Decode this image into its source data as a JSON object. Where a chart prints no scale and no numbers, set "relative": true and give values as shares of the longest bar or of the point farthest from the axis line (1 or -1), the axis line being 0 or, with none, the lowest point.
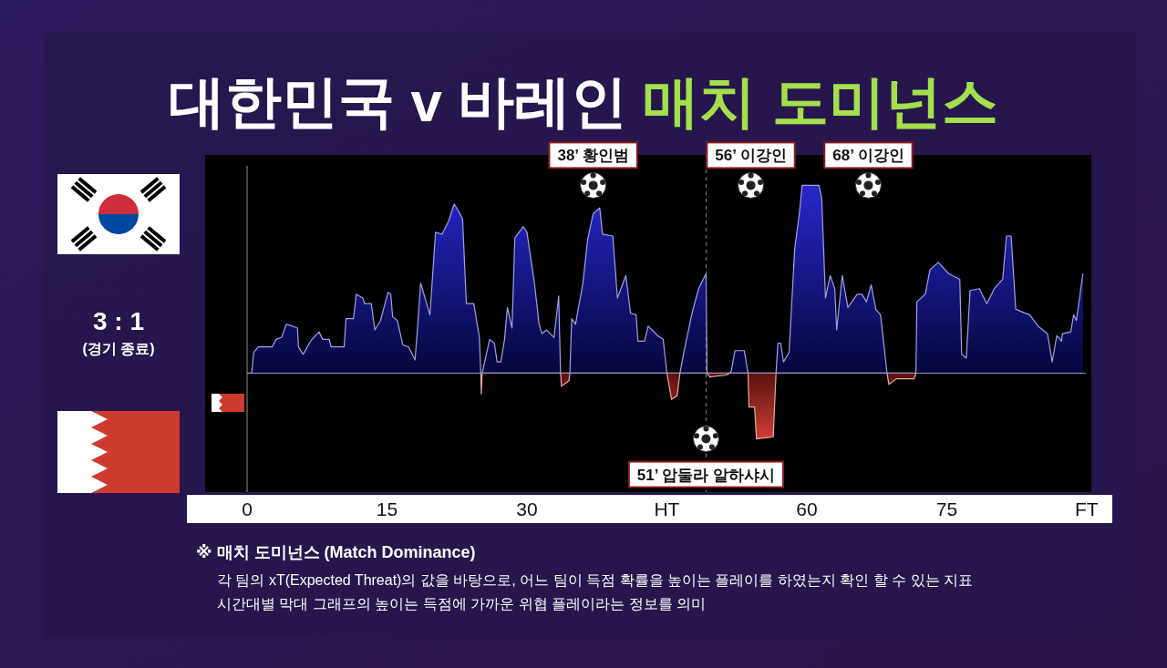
{
  "chart_data": {
    "type": "area",
    "title": "대한민국 v 바레인 매치 도미넌스",
    "relative": true,
    "xlim": [
      -4.5,
      90.5
    ],
    "xticks": [
      0,
      15,
      30,
      {
        "value": 45,
        "label": "HT"
      },
      60,
      75,
      {
        "value": 90,
        "label": "FT"
      }
    ],
    "tick_labels": "x",
    "series": [
      {
        "color": "#1414c8",
        "x": [
          0,
          0.5,
          0.7,
          1.2,
          2.7,
          3.1,
          3.7,
          4.2,
          4.9,
          5.4,
          5.5,
          6.0,
          6.8,
          7.7,
          8.1,
          8.8,
          9.0,
          10.4,
          10.6,
          11.4,
          11.7,
          12.4,
          12.6,
          13.3,
          13.7,
          14.3,
          15.1,
          15.4,
          15.6,
          16.1,
          16.7,
          17.3,
          18.0,
          18.3,
          18.6,
          19.6,
          20.2,
          20.9,
          21.6,
          22.2,
          22.7,
          23.1,
          23.5,
          24.3,
          24.9,
          25.05,
          25.2,
          26.0,
          26.5,
          26.8,
          27.2,
          27.6,
          27.9,
          28.4,
          28.7,
          29.6,
          30.0,
          30.8,
          31.3,
          31.6,
          32.1,
          32.9,
          33.4,
          33.6,
          34.6,
          34.8,
          35.2,
          36.0,
          36.5,
          37.1,
          37.8,
          38.1,
          39.2,
          39.7,
          40.6,
          41.1,
          41.7,
          41.9,
          42.6,
          43.0,
          44.0,
          44.6,
          45.0,
          46.4,
          46.9,
          47.7,
          48.4,
          49.2,
          49.3,
          51.7,
          51.9,
          52.3,
          53.3,
          53.7,
          56.7,
          56.9,
          57.2,
          57.5,
          58.1,
          58.7,
          59.2,
          59.5,
          61.3,
          61.6,
          62.0,
          62.5,
          63.0,
          63.2,
          63.8,
          64.4,
          65.4,
          65.9,
          66.4,
          66.9,
          67.4,
          67.9,
          68.6,
          71.7,
          71.8,
          72.7,
          73.2,
          74.1,
          75.2,
          76.4,
          76.6,
          77.1,
          77.5,
          78.5,
          79.3,
          80.1,
          81.0,
          81.4,
          81.9,
          82.4,
          83.9,
          84.8,
          85.8,
          86.3,
          86.8,
          87.3,
          87.4,
          88.3,
          88.6,
          88.9,
          89.6
        ],
        "values": [
          0,
          0,
          0.11,
          0.14,
          0.14,
          0.18,
          0.19,
          0.26,
          0.25,
          0.24,
          0.14,
          0.1,
          0.17,
          0.22,
          0.18,
          0.18,
          0.14,
          0.14,
          0.29,
          0.29,
          0.42,
          0.4,
          0.37,
          0.37,
          0.23,
          0.28,
          0.43,
          0.42,
          0.3,
          0.28,
          0.15,
          0.14,
          0.07,
          0.26,
          0.48,
          0.31,
          0.75,
          0.74,
          0.81,
          0.9,
          0.86,
          0.82,
          0.37,
          0.37,
          0.19,
          0,
          0,
          0.18,
          0.16,
          0.06,
          0.06,
          0.18,
          0.35,
          0.24,
          0.72,
          0.78,
          0.75,
          0.48,
          0.26,
          0.21,
          0.23,
          0.19,
          0.41,
          0,
          0,
          0.29,
          0.26,
          0.48,
          0.71,
          0.85,
          0.88,
          0.74,
          0.73,
          0.4,
          0.52,
          0.32,
          0.31,
          0.17,
          0.17,
          0.25,
          0.2,
          0.18,
          0,
          0,
          0.13,
          0.32,
          0.45,
          0.53,
          0,
          0,
          0.01,
          0.12,
          0.12,
          0,
          0,
          0.16,
          0.16,
          0.06,
          0.11,
          0.66,
          0.85,
          1,
          1,
          0.93,
          0.4,
          0.52,
          0.45,
          0.23,
          0.52,
          0.35,
          0.42,
          0.42,
          0.38,
          0.47,
          0.34,
          0.31,
          0,
          0,
          0.38,
          0.42,
          0.55,
          0.59,
          0.53,
          0.5,
          0.1,
          0.08,
          0.44,
          0.45,
          0.37,
          0.45,
          0.5,
          0.73,
          0.73,
          0.34,
          0.31,
          0.25,
          0.21,
          0.06,
          0.2,
          0.17,
          0.21,
          0.22,
          0.31,
          0.28,
          0.53
        ]
      },
      {
        "color": "#c8281e",
        "x": [
          25.05,
          25.1,
          25.2,
          33.6,
          33.7,
          34.5,
          34.6,
          45.0,
          45.5,
          46.1,
          46.4,
          49.3,
          49.6,
          51.4,
          51.7,
          53.7,
          53.8,
          54.4,
          54.6,
          56.4,
          56.7,
          68.6,
          68.8,
          69.6,
          71.5,
          71.7
        ],
        "values": [
          0,
          -0.11,
          0,
          0,
          -0.07,
          -0.04,
          0,
          0,
          -0.14,
          -0.12,
          0,
          0,
          -0.02,
          -0.01,
          0,
          0,
          -0.18,
          -0.18,
          -0.35,
          -0.34,
          0,
          0,
          -0.06,
          -0.03,
          -0.03,
          0
        ]
      }
    ],
    "ref_lines": [
      {
        "axis": "x",
        "value": 49.2,
        "color": "#8a8a8a",
        "line_style": "dashed"
      },
      {
        "axis": "y",
        "value": 0,
        "color": "#9a8fd0"
      }
    ],
    "annotations": [
      {
        "text": "38’ 황인범",
        "x": 37.1,
        "y": 1.0
      },
      {
        "text": "56’ 이강인",
        "x": 54.0,
        "y": 1.0
      },
      {
        "text": "68’ 이강인",
        "x": 66.6,
        "y": 1.0
      },
      {
        "text": "51’ 압둘라 알하샤시",
        "x": 49.2,
        "y": -0.35
      },
      "3 : 1",
      "(경기 종료)",
      "※ 매치 도미넌스 (Match Dominance)",
      "각 팀의 xT(Expected Threat)의 값을 바탕으로, 어느 팀이 득점 확률을 높이는 플레이를 하였는지 확인 할 수 있는 지표",
      "시간대별 막대 그래프의 높이는 득점에 가까운 위협 플레이라는 정보를 의미"
    ]
  }
}
